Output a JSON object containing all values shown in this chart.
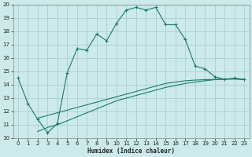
{
  "xlabel": "Humidex (Indice chaleur)",
  "xlim": [
    -0.5,
    23.5
  ],
  "ylim": [
    10,
    20
  ],
  "xticks": [
    0,
    1,
    2,
    3,
    4,
    5,
    6,
    7,
    8,
    9,
    10,
    11,
    12,
    13,
    14,
    15,
    16,
    17,
    18,
    19,
    20,
    21,
    22,
    23
  ],
  "yticks": [
    10,
    11,
    12,
    13,
    14,
    15,
    16,
    17,
    18,
    19,
    20
  ],
  "bg_color": "#cceaea",
  "grid_color": "#aacece",
  "line_color": "#1a7a6a",
  "series1_x": [
    0,
    1,
    2,
    3,
    4,
    5,
    6,
    7,
    8,
    9,
    10,
    11,
    12,
    13,
    14,
    15,
    16,
    17,
    18,
    19,
    20,
    21,
    22,
    23
  ],
  "series1_y": [
    14.5,
    12.6,
    11.4,
    10.4,
    11.1,
    14.9,
    16.7,
    16.6,
    17.8,
    17.3,
    18.6,
    19.6,
    19.8,
    19.6,
    19.8,
    18.5,
    18.5,
    17.4,
    15.4,
    15.2,
    14.6,
    14.4,
    14.5,
    14.4
  ],
  "series2_x": [
    2,
    3,
    4,
    5,
    6,
    7,
    8,
    9,
    10,
    11,
    12,
    13,
    14,
    15,
    16,
    17,
    18,
    19,
    20,
    21,
    22,
    23
  ],
  "series2_y": [
    11.5,
    11.7,
    11.9,
    12.1,
    12.3,
    12.5,
    12.7,
    12.9,
    13.1,
    13.3,
    13.5,
    13.7,
    13.9,
    14.1,
    14.2,
    14.3,
    14.35,
    14.38,
    14.4,
    14.42,
    14.43,
    14.4
  ],
  "series3_x": [
    2,
    3,
    4,
    5,
    6,
    7,
    8,
    9,
    10,
    11,
    12,
    13,
    14,
    15,
    16,
    17,
    18,
    19,
    20,
    21,
    22,
    23
  ],
  "series3_y": [
    10.5,
    10.8,
    11.0,
    11.3,
    11.6,
    11.9,
    12.2,
    12.5,
    12.8,
    13.0,
    13.2,
    13.4,
    13.6,
    13.8,
    13.95,
    14.1,
    14.2,
    14.3,
    14.38,
    14.42,
    14.44,
    14.4
  ]
}
